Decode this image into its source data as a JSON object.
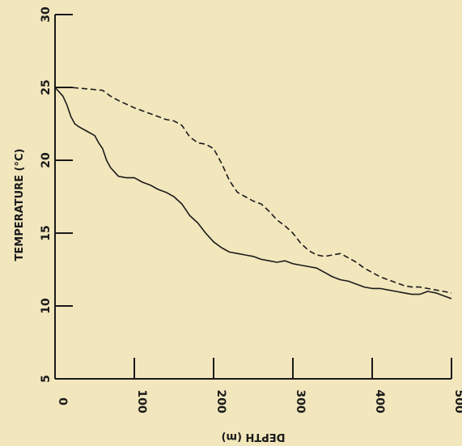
{
  "chart_data": {
    "type": "line",
    "title": "",
    "xlabel": "DEPTH (m)",
    "ylabel": "TEMPERATURE (°C)",
    "xlim": [
      0,
      500
    ],
    "ylim": [
      5,
      30
    ],
    "x_ticks": [
      0,
      100,
      200,
      300,
      400,
      500
    ],
    "y_ticks": [
      5,
      10,
      15,
      20,
      25,
      30
    ],
    "grid": false,
    "colors": {
      "background": "#f2e6bd",
      "ink": "#1a1a1a"
    },
    "series": [
      {
        "style": "solid",
        "x": [
          0,
          5,
          10,
          15,
          20,
          25,
          30,
          40,
          50,
          55,
          60,
          65,
          70,
          75,
          80,
          90,
          100,
          110,
          120,
          130,
          140,
          150,
          160,
          170,
          180,
          190,
          200,
          210,
          220,
          230,
          240,
          250,
          260,
          270,
          280,
          290,
          300,
          310,
          320,
          330,
          340,
          350,
          360,
          370,
          380,
          390,
          400,
          410,
          420,
          430,
          440,
          450,
          460,
          470,
          480,
          490,
          500
        ],
        "y": [
          25.0,
          24.7,
          24.4,
          23.8,
          23.0,
          22.5,
          22.3,
          22.0,
          21.7,
          21.2,
          20.8,
          20.0,
          19.5,
          19.2,
          18.9,
          18.8,
          18.8,
          18.5,
          18.3,
          18.0,
          17.8,
          17.5,
          17.0,
          16.2,
          15.7,
          15.0,
          14.4,
          14.0,
          13.7,
          13.6,
          13.5,
          13.4,
          13.2,
          13.1,
          13.0,
          13.1,
          12.9,
          12.8,
          12.7,
          12.6,
          12.3,
          12.0,
          11.8,
          11.7,
          11.5,
          11.3,
          11.2,
          11.2,
          11.1,
          11.0,
          10.9,
          10.8,
          10.8,
          11.0,
          10.9,
          10.7,
          10.5
        ]
      },
      {
        "style": "dashed",
        "x": [
          0,
          20,
          40,
          60,
          70,
          80,
          100,
          120,
          140,
          150,
          160,
          170,
          180,
          190,
          200,
          210,
          220,
          230,
          240,
          250,
          260,
          270,
          280,
          290,
          300,
          310,
          320,
          330,
          340,
          350,
          360,
          370,
          380,
          390,
          400,
          410,
          420,
          430,
          440,
          450,
          460,
          470,
          480,
          490,
          500
        ],
        "y": [
          25.0,
          25.0,
          24.9,
          24.8,
          24.4,
          24.1,
          23.6,
          23.2,
          22.8,
          22.7,
          22.4,
          21.6,
          21.2,
          21.1,
          20.8,
          19.8,
          18.6,
          17.8,
          17.5,
          17.2,
          17.0,
          16.5,
          15.9,
          15.5,
          15.0,
          14.3,
          13.8,
          13.5,
          13.4,
          13.5,
          13.6,
          13.3,
          13.0,
          12.6,
          12.3,
          12.0,
          11.8,
          11.6,
          11.4,
          11.3,
          11.3,
          11.2,
          11.1,
          11.0,
          10.9
        ]
      }
    ]
  }
}
